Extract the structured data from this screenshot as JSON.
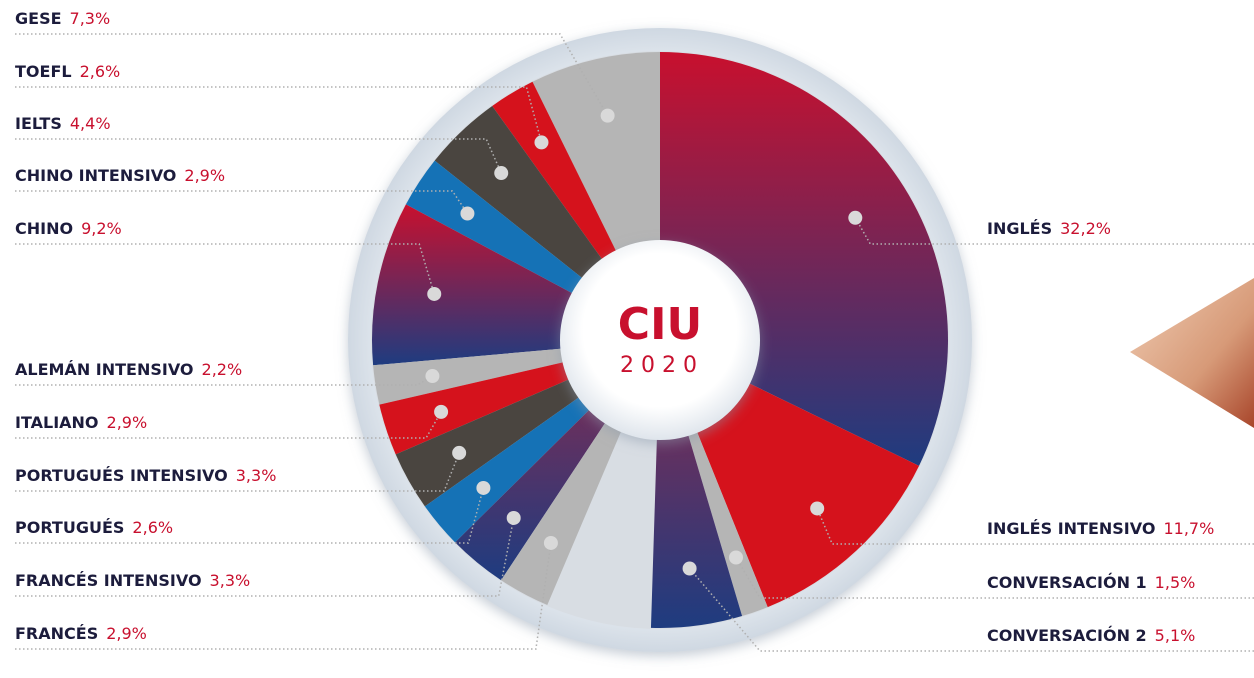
{
  "chart_data": {
    "type": "pie",
    "center_title": "CIU",
    "center_subtitle": "2020",
    "groups": [
      {
        "direction": "counterclockwise",
        "slices": [
          {
            "label": "GESE",
            "value": 7.3,
            "value_label": "7,3%",
            "color": "#b5b5b5"
          },
          {
            "label": "TOEFL",
            "value": 2.6,
            "value_label": "2,6%",
            "color": "#d5121c"
          },
          {
            "label": "IELTS",
            "value": 4.4,
            "value_label": "4,4%",
            "color": "#4a4540"
          },
          {
            "label": "CHINO INTENSIVO",
            "value": 2.9,
            "value_label": "2,9%",
            "color": "#1572b6"
          },
          {
            "label": "CHINO",
            "value": 9.2,
            "value_label": "9,2%",
            "color": [
              "#c8102e",
              "#1e3c80"
            ]
          },
          {
            "label": "ALEMÁN INTENSIVO",
            "value": 2.2,
            "value_label": "2,2%",
            "color": "#b5b5b5"
          },
          {
            "label": "ITALIANO",
            "value": 2.9,
            "value_label": "2,9%",
            "color": "#d5121c"
          },
          {
            "label": "PORTUGUÉS INTENSIVO",
            "value": 3.3,
            "value_label": "3,3%",
            "color": "#4a4540"
          },
          {
            "label": "PORTUGUÉS",
            "value": 2.6,
            "value_label": "2,6%",
            "color": "#1572b6"
          },
          {
            "label": "FRANCÉS INTENSIVO",
            "value": 3.3,
            "value_label": "3,3%",
            "color": [
              "#8a2a4e",
              "#1e3c80"
            ]
          },
          {
            "label": "FRANCÉS",
            "value": 2.9,
            "value_label": "2,9%",
            "color": "#b5b5b5"
          }
        ]
      },
      {
        "direction": "clockwise",
        "slices": [
          {
            "label": "INGLÉS",
            "value": 32.2,
            "value_label": "32,2%",
            "color": [
              "#c8102e",
              "#1e3c80"
            ]
          },
          {
            "label": "INGLÉS INTENSIVO",
            "value": 11.7,
            "value_label": "11,7%",
            "color": "#d5121c"
          },
          {
            "label": "CONVERSACIÓN 1",
            "value": 1.5,
            "value_label": "1,5%",
            "color": "#b5b5b5"
          },
          {
            "label": "CONVERSACIÓN 2",
            "value": 5.1,
            "value_label": "5,1%",
            "color": [
              "#8a2a4e",
              "#1e3c80"
            ]
          }
        ]
      }
    ]
  }
}
